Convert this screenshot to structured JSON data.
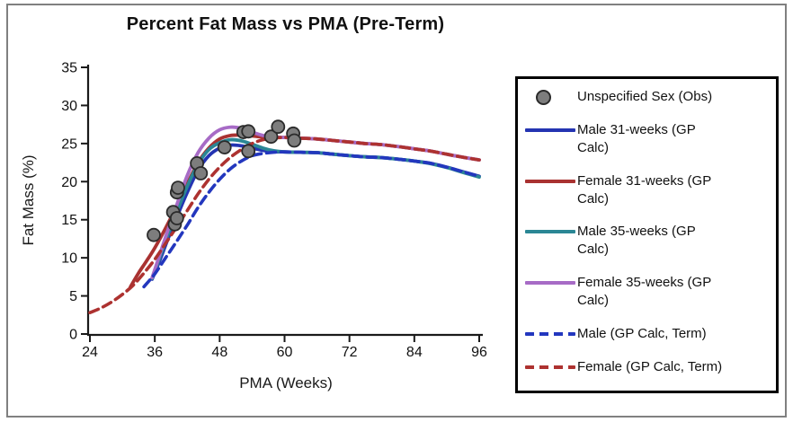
{
  "title": "Percent Fat Mass vs PMA (Pre-Term)",
  "colors": {
    "male31": "#2434b2",
    "female31": "#a93231",
    "male35": "#2b8795",
    "female35": "#a76bc6",
    "male_term": "#2337be",
    "female_term": "#ad3230",
    "scatter_fill": "#7d7d7d",
    "scatter_stroke": "#2b2b2b",
    "axis": "#1a1a1a",
    "figure_border": "#808080",
    "legend_border": "#000000"
  },
  "chart_data": {
    "type": "line",
    "title": "Percent Fat Mass vs PMA (Pre-Term)",
    "xlabel": "PMA (Weeks)",
    "ylabel": "Fat Mass (%)",
    "xlim": [
      24,
      96
    ],
    "ylim": [
      0,
      35
    ],
    "xticks": [
      24,
      36,
      48,
      60,
      72,
      84,
      96
    ],
    "yticks": [
      0,
      5,
      10,
      15,
      20,
      25,
      30,
      35
    ],
    "grid": false,
    "legend_position": "right",
    "scatter": {
      "name": "Unspecified Sex (Obs)",
      "color": "#7d7d7d",
      "points": [
        [
          35.8,
          13.0
        ],
        [
          39.4,
          16.0
        ],
        [
          39.7,
          14.4
        ],
        [
          40.1,
          15.2
        ],
        [
          40.1,
          18.6
        ],
        [
          40.3,
          19.2
        ],
        [
          43.8,
          22.4
        ],
        [
          44.5,
          21.1
        ],
        [
          48.9,
          24.5
        ],
        [
          52.4,
          26.5
        ],
        [
          53.3,
          26.6
        ],
        [
          53.3,
          24.0
        ],
        [
          57.5,
          25.9
        ],
        [
          58.8,
          27.2
        ],
        [
          61.6,
          26.3
        ],
        [
          61.8,
          25.4
        ]
      ]
    },
    "series": [
      {
        "name": "Male 31-weeks (GP Calc)",
        "color": "#2434b2",
        "style": "solid",
        "points": [
          [
            35.5,
            7.2
          ],
          [
            37,
            9.8
          ],
          [
            38.5,
            12.6
          ],
          [
            40,
            15.2
          ],
          [
            42,
            18.6
          ],
          [
            44,
            21.5
          ],
          [
            46,
            23.4
          ],
          [
            48,
            24.4
          ],
          [
            50,
            24.8
          ],
          [
            52,
            24.7
          ],
          [
            54,
            24.4
          ],
          [
            56,
            24.1
          ],
          [
            58,
            23.95
          ],
          [
            60,
            23.9
          ],
          [
            63,
            23.85
          ],
          [
            66,
            23.8
          ],
          [
            69,
            23.6
          ],
          [
            72,
            23.4
          ],
          [
            75,
            23.25
          ],
          [
            78,
            23.15
          ],
          [
            81,
            22.95
          ],
          [
            84,
            22.7
          ],
          [
            87,
            22.4
          ],
          [
            90,
            21.9
          ],
          [
            93,
            21.3
          ],
          [
            96,
            20.7
          ]
        ]
      },
      {
        "name": "Female 31-weeks (GP Calc)",
        "color": "#a93231",
        "style": "solid",
        "points": [
          [
            31.5,
            6.2
          ],
          [
            33,
            8.0
          ],
          [
            34.5,
            9.6
          ],
          [
            36,
            11.3
          ],
          [
            38,
            13.9
          ],
          [
            40,
            16.7
          ],
          [
            42,
            19.7
          ],
          [
            44,
            22.5
          ],
          [
            46,
            24.4
          ],
          [
            48,
            25.6
          ],
          [
            50,
            26.05
          ],
          [
            52,
            26.1
          ],
          [
            54,
            26.0
          ],
          [
            56,
            25.85
          ],
          [
            58,
            25.8
          ],
          [
            60,
            25.8
          ],
          [
            63,
            25.7
          ],
          [
            66,
            25.6
          ],
          [
            69,
            25.4
          ],
          [
            72,
            25.2
          ],
          [
            75,
            25.0
          ],
          [
            78,
            24.85
          ],
          [
            81,
            24.6
          ],
          [
            84,
            24.3
          ],
          [
            87,
            24.0
          ],
          [
            90,
            23.6
          ],
          [
            93,
            23.2
          ],
          [
            96,
            22.85
          ]
        ]
      },
      {
        "name": "Male 35-weeks (GP Calc)",
        "color": "#2b8795",
        "style": "solid",
        "points": [
          [
            35.5,
            7.3
          ],
          [
            37,
            10.2
          ],
          [
            38.5,
            13.2
          ],
          [
            40,
            15.9
          ],
          [
            42,
            19.4
          ],
          [
            44,
            22.3
          ],
          [
            46,
            24.2
          ],
          [
            48,
            25.1
          ],
          [
            50,
            25.5
          ],
          [
            52,
            25.35
          ],
          [
            54,
            24.9
          ],
          [
            56,
            24.4
          ],
          [
            58,
            24.05
          ],
          [
            60,
            23.9
          ],
          [
            63,
            23.85
          ],
          [
            66,
            23.8
          ],
          [
            69,
            23.6
          ],
          [
            72,
            23.4
          ],
          [
            75,
            23.25
          ],
          [
            78,
            23.15
          ],
          [
            81,
            22.95
          ],
          [
            84,
            22.7
          ],
          [
            87,
            22.35
          ],
          [
            90,
            21.85
          ],
          [
            93,
            21.2
          ],
          [
            96,
            20.6
          ]
        ]
      },
      {
        "name": "Female 35-weeks (GP Calc)",
        "color": "#a76bc6",
        "style": "solid",
        "points": [
          [
            35.5,
            7.4
          ],
          [
            37,
            10.6
          ],
          [
            38.5,
            13.8
          ],
          [
            40,
            16.8
          ],
          [
            42,
            20.8
          ],
          [
            44,
            23.8
          ],
          [
            46,
            25.7
          ],
          [
            48,
            26.8
          ],
          [
            50,
            27.15
          ],
          [
            52,
            27.0
          ],
          [
            54,
            26.5
          ],
          [
            56,
            26.05
          ],
          [
            58,
            25.85
          ],
          [
            60,
            25.8
          ],
          [
            63,
            25.7
          ],
          [
            66,
            25.6
          ],
          [
            69,
            25.4
          ],
          [
            72,
            25.2
          ],
          [
            75,
            25.0
          ],
          [
            78,
            24.85
          ],
          [
            81,
            24.6
          ],
          [
            84,
            24.3
          ],
          [
            87,
            24.0
          ],
          [
            90,
            23.6
          ],
          [
            93,
            23.2
          ],
          [
            96,
            22.85
          ]
        ]
      },
      {
        "name": "Male (GP Calc, Term)",
        "color": "#2337be",
        "style": "dashed",
        "points": [
          [
            34,
            6.2
          ],
          [
            36,
            7.9
          ],
          [
            38,
            10.0
          ],
          [
            40,
            12.1
          ],
          [
            42,
            14.3
          ],
          [
            44,
            16.6
          ],
          [
            46,
            18.6
          ],
          [
            48,
            20.3
          ],
          [
            50,
            21.7
          ],
          [
            52,
            22.7
          ],
          [
            54,
            23.4
          ],
          [
            56,
            23.7
          ],
          [
            58,
            23.85
          ],
          [
            60,
            23.9
          ],
          [
            63,
            23.85
          ],
          [
            66,
            23.8
          ],
          [
            69,
            23.6
          ],
          [
            72,
            23.4
          ],
          [
            75,
            23.25
          ],
          [
            78,
            23.15
          ],
          [
            81,
            22.95
          ],
          [
            84,
            22.7
          ],
          [
            87,
            22.4
          ],
          [
            90,
            21.9
          ],
          [
            93,
            21.3
          ],
          [
            96,
            20.7
          ]
        ]
      },
      {
        "name": "Female (GP Calc, Term)",
        "color": "#ad3230",
        "style": "dashed",
        "points": [
          [
            24,
            2.8
          ],
          [
            26,
            3.4
          ],
          [
            28,
            4.2
          ],
          [
            30,
            5.2
          ],
          [
            32,
            6.4
          ],
          [
            34,
            8.0
          ],
          [
            36,
            9.8
          ],
          [
            38,
            11.9
          ],
          [
            40,
            14.0
          ],
          [
            42,
            16.2
          ],
          [
            44,
            18.4
          ],
          [
            46,
            20.3
          ],
          [
            48,
            21.9
          ],
          [
            50,
            23.2
          ],
          [
            52,
            24.2
          ],
          [
            54,
            25.0
          ],
          [
            56,
            25.5
          ],
          [
            58,
            25.7
          ],
          [
            60,
            25.8
          ],
          [
            63,
            25.7
          ],
          [
            66,
            25.6
          ],
          [
            69,
            25.4
          ],
          [
            72,
            25.2
          ],
          [
            75,
            25.0
          ],
          [
            78,
            24.85
          ],
          [
            81,
            24.6
          ],
          [
            84,
            24.3
          ],
          [
            87,
            24.0
          ],
          [
            90,
            23.6
          ],
          [
            93,
            23.2
          ],
          [
            96,
            22.85
          ]
        ]
      }
    ]
  },
  "legend": {
    "items": [
      {
        "label": "Unspecified Sex (Obs)",
        "swatch": "marker",
        "color": "#7d7d7d"
      },
      {
        "label": "Male 31-weeks (GP Calc)",
        "swatch": "solid-line",
        "color": "#2434b2"
      },
      {
        "label": "Female 31-weeks (GP Calc)",
        "swatch": "solid-line",
        "color": "#a93231"
      },
      {
        "label": "Male 35-weeks (GP Calc)",
        "swatch": "solid-line",
        "color": "#2b8795"
      },
      {
        "label": "Female 35-weeks (GP Calc)",
        "swatch": "solid-line",
        "color": "#a76bc6"
      },
      {
        "label": "Male (GP Calc, Term)",
        "swatch": "dashed-line",
        "color": "#2337be"
      },
      {
        "label": "Female (GP Calc, Term)",
        "swatch": "dashed-line",
        "color": "#ad3230"
      }
    ]
  }
}
